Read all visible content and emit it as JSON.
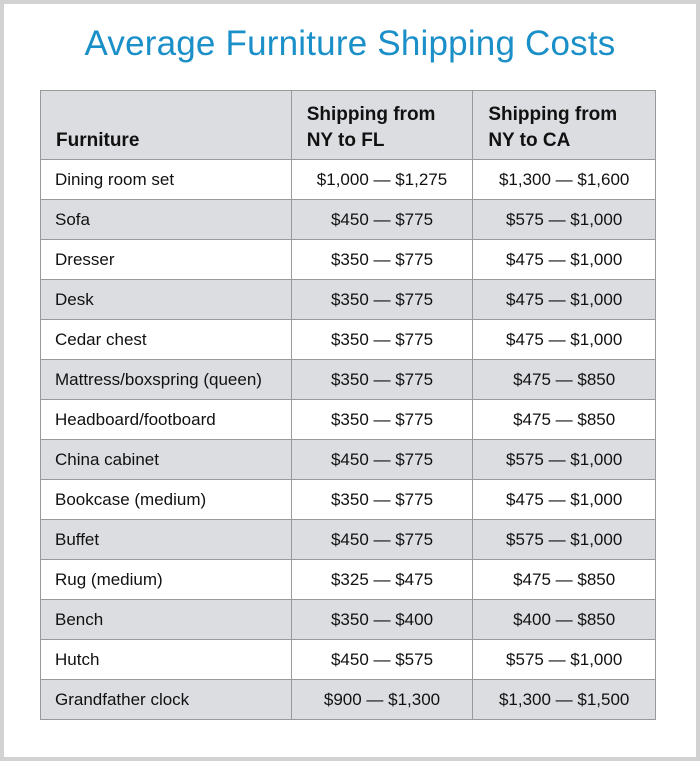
{
  "title": "Average Furniture Shipping Costs",
  "headers": {
    "furniture": "Furniture",
    "fl_line1": "Shipping from",
    "fl_line2": "NY to FL",
    "ca_line1": "Shipping from",
    "ca_line2": "NY to CA"
  },
  "rows": [
    {
      "item": "Dining room set",
      "fl": "$1,000 — $1,275",
      "ca": "$1,300 — $1,600"
    },
    {
      "item": "Sofa",
      "fl": "$450 — $775",
      "ca": "$575 — $1,000"
    },
    {
      "item": "Dresser",
      "fl": "$350 — $775",
      "ca": "$475 — $1,000"
    },
    {
      "item": "Desk",
      "fl": "$350 — $775",
      "ca": "$475 — $1,000"
    },
    {
      "item": "Cedar chest",
      "fl": "$350 — $775",
      "ca": "$475 — $1,000"
    },
    {
      "item": "Mattress/boxspring (queen)",
      "fl": "$350 — $775",
      "ca": "$475 — $850"
    },
    {
      "item": "Headboard/footboard",
      "fl": "$350 — $775",
      "ca": "$475 — $850"
    },
    {
      "item": "China cabinet",
      "fl": "$450 — $775",
      "ca": "$575 — $1,000"
    },
    {
      "item": "Bookcase (medium)",
      "fl": "$350 — $775",
      "ca": "$475 — $1,000"
    },
    {
      "item": "Buffet",
      "fl": "$450 — $775",
      "ca": "$575 — $1,000"
    },
    {
      "item": "Rug (medium)",
      "fl": "$325 — $475",
      "ca": "$475 — $850"
    },
    {
      "item": "Bench",
      "fl": "$350 — $400",
      "ca": "$400 — $850"
    },
    {
      "item": "Hutch",
      "fl": "$450 — $575",
      "ca": "$575 — $1,000"
    },
    {
      "item": "Grandfather clock",
      "fl": "$900 — $1,300",
      "ca": "$1,300 — $1,500"
    }
  ],
  "colors": {
    "title": "#1a8fc8",
    "shade": "#dcdde1",
    "border": "#9a9a9a",
    "frame": "#d2d2d2"
  }
}
